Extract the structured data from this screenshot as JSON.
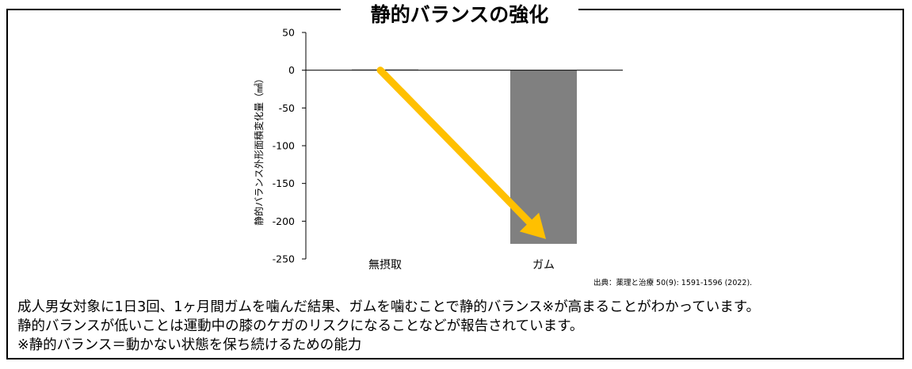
{
  "title": "静的バランスの強化",
  "chart_data": {
    "type": "bar",
    "categories": [
      "無摂取",
      "ガム"
    ],
    "values": [
      1,
      -230
    ],
    "ylabel": "静的バランス外形面積変化量（㎟）",
    "ylim": [
      -250,
      50
    ],
    "yticks": [
      50,
      0,
      -50,
      -100,
      -150,
      -200,
      -250
    ],
    "grid": false,
    "bar_color": "#808080",
    "arrow_color": "#FFC000",
    "arrow": {
      "from": [
        "無摂取",
        0
      ],
      "to": [
        "ガム",
        -230
      ]
    }
  },
  "source": "出典：薬理と治療 50(9): 1591-1596 (2022).",
  "description": [
    "成人男女対象に1日3回、1ヶ月間ガムを噛んだ結果、ガムを噛むことで静的バランス※が高まることがわかっています。",
    "静的バランスが低いことは運動中の膝のケガのリスクになることなどが報告されています。",
    "※静的バランス＝動かない状態を保ち続けるための能力"
  ]
}
